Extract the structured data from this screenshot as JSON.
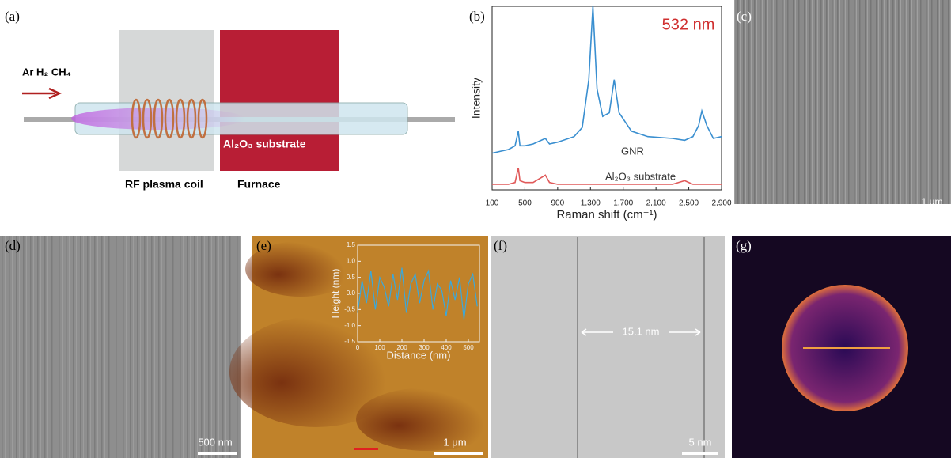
{
  "panel_labels": [
    "(a)",
    "(b)",
    "(c)",
    "(d)",
    "(e)",
    "(f)",
    "(g)"
  ],
  "setup": {
    "gases": "Ar H₂ CH₄",
    "substrate": "Al₂O₃ substrate",
    "coil": "RF plasma coil",
    "furnace": "Furnace"
  },
  "scale_bars": {
    "c": "1 μm",
    "d": "500 nm",
    "e": "1 μm",
    "f": "5 nm"
  },
  "tem_annotation": "15.1 nm",
  "chart_data": [
    {
      "type": "line",
      "annotation": "532 nm",
      "x_label": "Raman shift (cm⁻¹)",
      "y_label": "Intensity",
      "x": [
        100,
        300,
        380,
        420,
        440,
        500,
        600,
        750,
        800,
        900,
        1100,
        1200,
        1280,
        1330,
        1380,
        1450,
        1530,
        1590,
        1650,
        1800,
        2000,
        2300,
        2450,
        2550,
        2620,
        2660,
        2720,
        2800,
        2900
      ],
      "series": [
        {
          "name": "GNR",
          "color": "#3a8fd0",
          "values": [
            0.2,
            0.22,
            0.24,
            0.32,
            0.24,
            0.24,
            0.25,
            0.28,
            0.25,
            0.26,
            0.29,
            0.34,
            0.6,
            1.0,
            0.55,
            0.4,
            0.42,
            0.6,
            0.42,
            0.32,
            0.29,
            0.28,
            0.27,
            0.29,
            0.35,
            0.43,
            0.35,
            0.28,
            0.29
          ]
        },
        {
          "name": "Al₂O₃ substrate",
          "color": "#e05a5a",
          "values": [
            0.03,
            0.03,
            0.04,
            0.12,
            0.05,
            0.04,
            0.04,
            0.08,
            0.04,
            0.03,
            0.03,
            0.03,
            0.03,
            0.03,
            0.03,
            0.03,
            0.03,
            0.03,
            0.03,
            0.03,
            0.03,
            0.03,
            0.05,
            0.03,
            0.03,
            0.03,
            0.03,
            0.03,
            0.03
          ]
        }
      ],
      "xlim": [
        100,
        2900
      ],
      "xticks": [
        100,
        500,
        900,
        {
          "value": 1300,
          "label": "1,300"
        },
        {
          "value": 1700,
          "label": "1,700"
        },
        {
          "value": 2100,
          "label": "2,100"
        },
        {
          "value": 2500,
          "label": "2,500"
        },
        {
          "value": 2900,
          "label": "2,900"
        }
      ],
      "ylim": [
        0,
        1
      ]
    },
    {
      "type": "line",
      "x_label": "Distance (nm)",
      "y_label": "Height (nm)",
      "x": [
        0,
        20,
        40,
        60,
        80,
        100,
        120,
        140,
        160,
        180,
        200,
        220,
        240,
        260,
        280,
        300,
        320,
        340,
        360,
        380,
        400,
        420,
        440,
        460,
        480,
        500,
        520,
        540
      ],
      "series": [
        {
          "name": null,
          "color": "#3aa8dc",
          "values": [
            -0.6,
            0.4,
            -0.3,
            0.7,
            -0.5,
            0.5,
            0.2,
            -0.4,
            0.6,
            -0.2,
            0.8,
            -0.6,
            0.3,
            0.6,
            -0.3,
            0.4,
            0.7,
            -0.5,
            0.3,
            0.1,
            -0.7,
            0.4,
            -0.2,
            0.5,
            -0.8,
            0.3,
            0.6,
            -0.4
          ]
        }
      ],
      "xlim": [
        0,
        550
      ],
      "xticks": [
        0,
        100,
        200,
        300,
        400,
        500
      ],
      "ylim": [
        -1.5,
        1.5
      ],
      "yticks": [
        -1.5,
        {
          "value": -1,
          "label": "-1.0"
        },
        -0.5,
        {
          "value": 0,
          "label": "0.0"
        },
        0.5,
        {
          "value": 1,
          "label": "1.0"
        },
        1.5
      ]
    }
  ]
}
